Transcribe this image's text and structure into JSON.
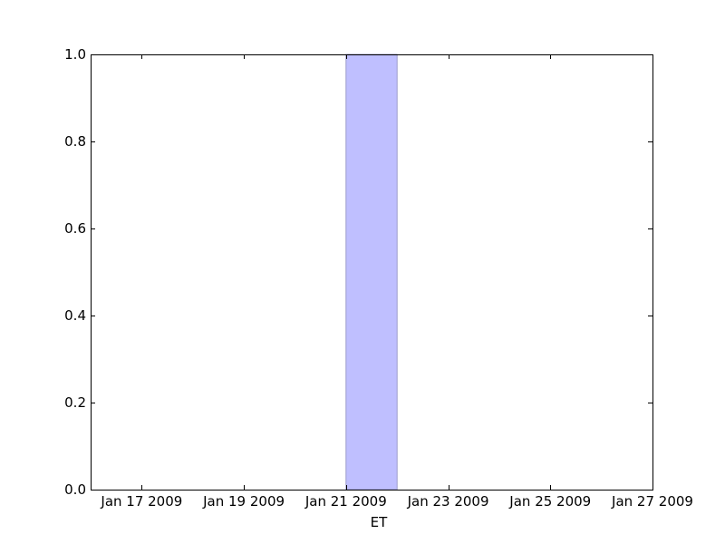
{
  "chart_data": {
    "type": "area",
    "title": "",
    "xlabel": "ET",
    "ylabel": "",
    "x_axis_type": "date",
    "xlim": [
      "2009-01-16",
      "2009-01-27"
    ],
    "ylim": [
      0,
      1
    ],
    "x_ticks": [
      "2009-01-17",
      "2009-01-19",
      "2009-01-21",
      "2009-01-23",
      "2009-01-25",
      "2009-01-27"
    ],
    "x_tick_labels": [
      "Jan 17 2009",
      "Jan 19 2009",
      "Jan 21 2009",
      "Jan 23 2009",
      "Jan 25 2009",
      "Jan 27 2009"
    ],
    "y_ticks": [
      0,
      0.2,
      0.4,
      0.6,
      0.8,
      1.0
    ],
    "y_tick_labels": [
      "0.0",
      "0.2",
      "0.4",
      "0.6",
      "0.8",
      "1.0"
    ],
    "grid": false,
    "legend": "none",
    "spans": [
      {
        "x_start": "2009-01-21",
        "x_end": "2009-01-22",
        "y_start": 0,
        "y_end": 1,
        "color": "#bfbfff",
        "edge_color": "#9a9acc"
      }
    ]
  }
}
